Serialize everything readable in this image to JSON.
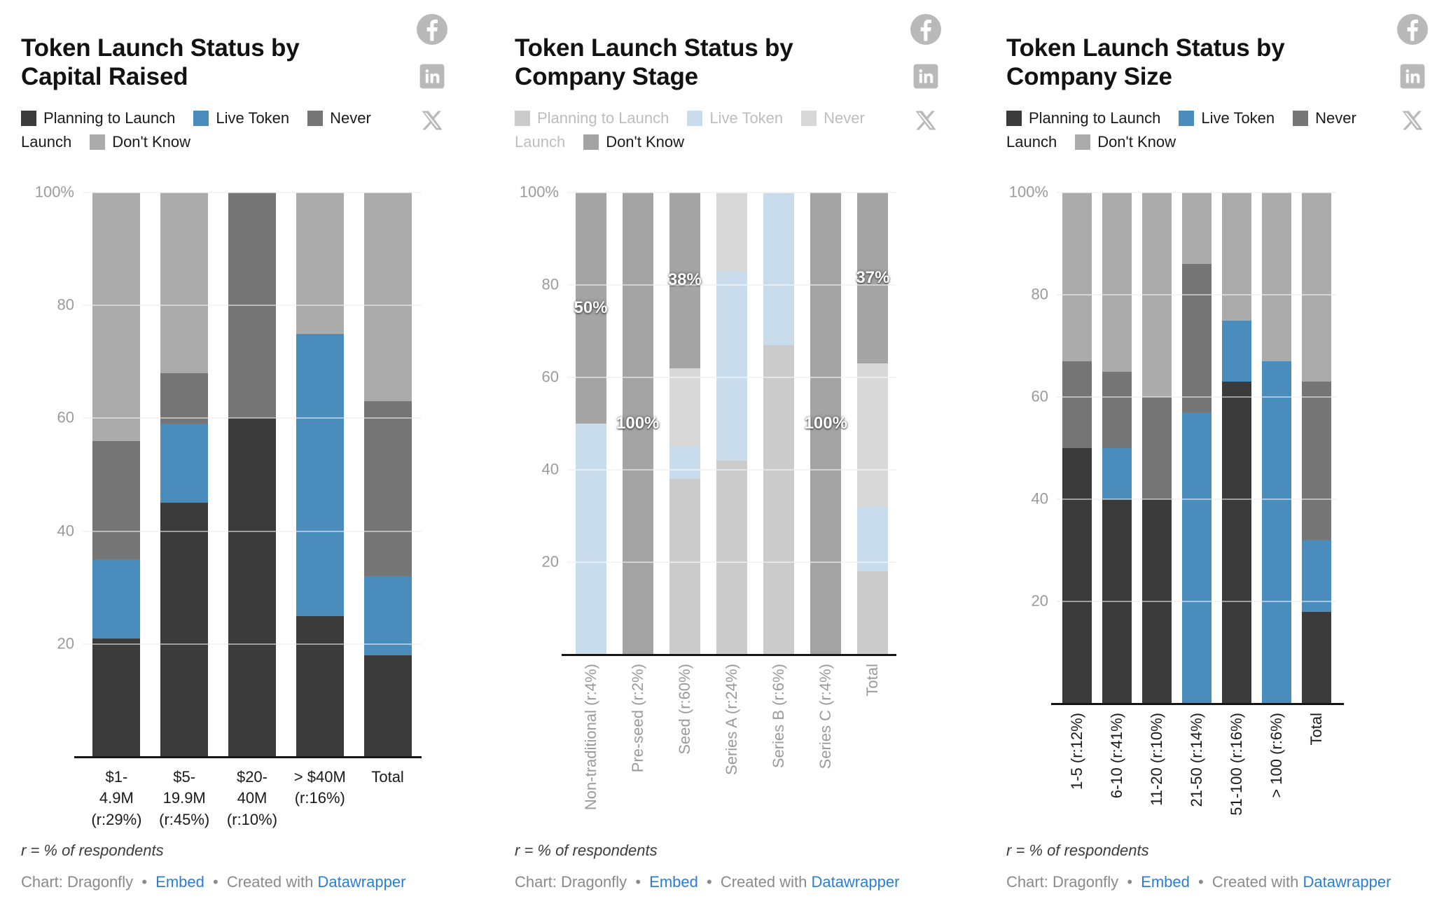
{
  "page": {
    "background": "#ffffff"
  },
  "colors": {
    "planning": "#3b3b3b",
    "live_token": "#4a8cbc",
    "never_launch": "#757575",
    "dont_know": "#ababab",
    "muted_planning": "#cbcbcb",
    "muted_live_token": "#c9dcec",
    "muted_never_launch": "#d8d8d8",
    "highlight_dont_know": "#a4a4a4",
    "link_blue": "#2d7dd2",
    "icon_gray": "#b9b9b9",
    "axis_tick_gray": "#9b9b9b"
  },
  "social_icons": [
    {
      "name": "facebook-icon"
    },
    {
      "name": "linkedin-icon"
    },
    {
      "name": "x-twitter-icon"
    }
  ],
  "footer": {
    "note": "r = % of respondents",
    "credit_prefix": "Chart: Dragonfly",
    "separator": "•",
    "embed_label": "Embed",
    "created_with": "Created with",
    "datawrapper_label": "Datawrapper"
  },
  "chart_data": [
    {
      "type": "bar",
      "subtype": "stacked-100-percent-column",
      "title": "Token Launch Status by Capital Raised",
      "y_ticks": [
        "100%",
        "80",
        "60",
        "40",
        "20"
      ],
      "ylim": [
        0,
        100
      ],
      "grid": true,
      "legend_position": "top",
      "x_rotated": false,
      "categories": [
        "$1-\n4.9M\n(r:29%)",
        "$5-\n19.9M\n(r:45%)",
        "$20-\n40M\n(r:10%)",
        "> $40M\n(r:16%)",
        "Total"
      ],
      "series": [
        {
          "name": "Planning to Launch",
          "key": "planning",
          "color": "#3b3b3b",
          "muted": false,
          "values": [
            21,
            45,
            60,
            25,
            18
          ]
        },
        {
          "name": "Live Token",
          "key": "live-token",
          "color": "#4a8cbc",
          "muted": false,
          "values": [
            14,
            14,
            0,
            50,
            14
          ]
        },
        {
          "name": "Never Launch",
          "key": "never-launch",
          "color": "#757575",
          "muted": false,
          "values": [
            21,
            9,
            40,
            0,
            31
          ]
        },
        {
          "name": "Don't Know",
          "key": "dont-know",
          "color": "#ababab",
          "muted": false,
          "values": [
            44,
            32,
            0,
            25,
            37
          ]
        }
      ],
      "bar_labels": [
        "",
        "",
        "",
        "",
        ""
      ]
    },
    {
      "type": "bar",
      "subtype": "stacked-100-percent-column",
      "title": "Token Launch Status by Company Stage",
      "highlighted_series": "Don't Know",
      "y_ticks": [
        "100%",
        "80",
        "60",
        "40",
        "20"
      ],
      "ylim": [
        0,
        100
      ],
      "grid": true,
      "legend_position": "top",
      "x_rotated": true,
      "categories": [
        "Non-traditional (r:4%)",
        "Pre-seed (r:2%)",
        "Seed (r:60%)",
        "Series A (r:24%)",
        "Series B (r:6%)",
        "Series C (r:4%)",
        "Total"
      ],
      "series": [
        {
          "name": "Planning to Launch",
          "key": "planning",
          "color": "#cbcbcb",
          "muted": true,
          "values": [
            0,
            0,
            38,
            42,
            67,
            0,
            18
          ]
        },
        {
          "name": "Live Token",
          "key": "live-token",
          "color": "#c9dcec",
          "muted": true,
          "values": [
            50,
            0,
            7,
            41,
            33,
            0,
            14
          ]
        },
        {
          "name": "Never Launch",
          "key": "never-launch",
          "color": "#d8d8d8",
          "muted": true,
          "values": [
            0,
            0,
            17,
            17,
            0,
            0,
            31
          ]
        },
        {
          "name": "Don't Know",
          "key": "dont-know",
          "color": "#a4a4a4",
          "muted": false,
          "values": [
            50,
            100,
            38,
            0,
            0,
            100,
            37
          ]
        }
      ],
      "bar_labels": [
        "50%",
        "100%",
        "38%",
        "",
        "",
        "100%",
        "37%"
      ]
    },
    {
      "type": "bar",
      "subtype": "stacked-100-percent-column",
      "title": "Token Launch Status by Company Size",
      "y_ticks": [
        "100%",
        "80",
        "60",
        "40",
        "20"
      ],
      "ylim": [
        0,
        100
      ],
      "grid": true,
      "legend_position": "top",
      "x_rotated": true,
      "categories": [
        "1-5 (r:12%)",
        "6-10 (r:41%)",
        "11-20 (r:10%)",
        "21-50 (r:14%)",
        "51-100 (r:16%)",
        "> 100 (r:6%)",
        "Total"
      ],
      "series": [
        {
          "name": "Planning to Launch",
          "key": "planning",
          "color": "#3b3b3b",
          "muted": false,
          "values": [
            50,
            40,
            40,
            0,
            63,
            0,
            18
          ]
        },
        {
          "name": "Live Token",
          "key": "live-token",
          "color": "#4a8cbc",
          "muted": false,
          "values": [
            0,
            10,
            0,
            57,
            12,
            67,
            14
          ]
        },
        {
          "name": "Never Launch",
          "key": "never-launch",
          "color": "#757575",
          "muted": false,
          "values": [
            17,
            15,
            20,
            29,
            0,
            0,
            31
          ]
        },
        {
          "name": "Don't Know",
          "key": "dont-know",
          "color": "#ababab",
          "muted": false,
          "values": [
            33,
            35,
            40,
            14,
            25,
            33,
            37
          ]
        }
      ],
      "bar_labels": [
        "",
        "",
        "",
        "",
        "",
        "",
        ""
      ]
    }
  ]
}
